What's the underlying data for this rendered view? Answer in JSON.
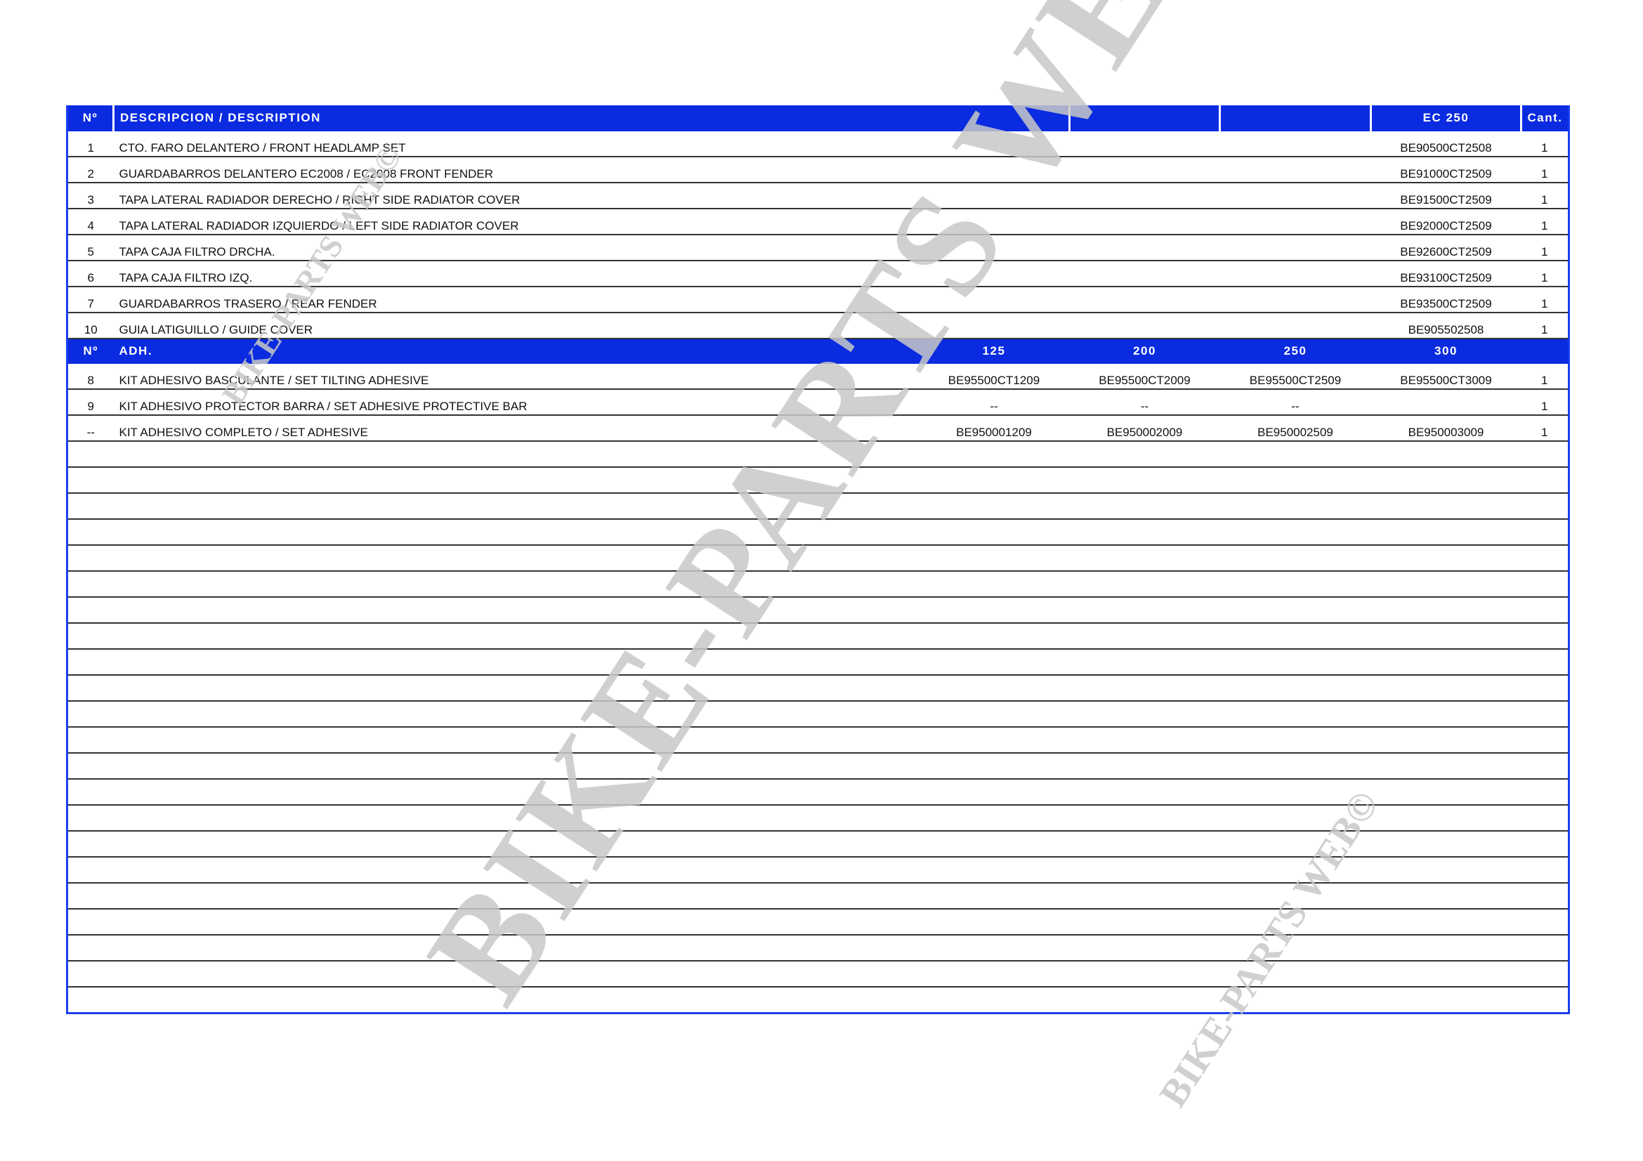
{
  "header": {
    "no": "Nº",
    "description": "DESCRIPCION / DESCRIPTION",
    "model": "EC 250",
    "qty": "Cant."
  },
  "parts": [
    {
      "no": "1",
      "desc": "CTO. FARO DELANTERO / FRONT HEADLAMP SET",
      "ref": "BE90500CT2508",
      "qty": "1"
    },
    {
      "no": "2",
      "desc": "GUARDABARROS DELANTERO EC2008 / EC2008 FRONT FENDER",
      "ref": "BE91000CT2509",
      "qty": "1"
    },
    {
      "no": "3",
      "desc": "TAPA LATERAL RADIADOR DERECHO / RIGHT SIDE RADIATOR COVER",
      "ref": "BE91500CT2509",
      "qty": "1"
    },
    {
      "no": "4",
      "desc": "TAPA LATERAL RADIADOR IZQUIERDO / LEFT SIDE RADIATOR COVER",
      "ref": "BE92000CT2509",
      "qty": "1"
    },
    {
      "no": "5",
      "desc": "TAPA CAJA FILTRO DRCHA.",
      "ref": "BE92600CT2509",
      "qty": "1"
    },
    {
      "no": "6",
      "desc": "TAPA CAJA FILTRO IZQ.",
      "ref": "BE93100CT2509",
      "qty": "1"
    },
    {
      "no": "7",
      "desc": "GUARDABARROS TRASERO / REAR FENDER",
      "ref": "BE93500CT2509",
      "qty": "1"
    },
    {
      "no": "10",
      "desc": "GUIA LATIGUILLO / GUIDE COVER",
      "ref": "BE905502508",
      "qty": "1"
    }
  ],
  "adh_header": {
    "no": "Nº",
    "label": "ADH.",
    "c125": "125",
    "c200": "200",
    "c250": "250",
    "c300": "300"
  },
  "adhesives": [
    {
      "no": "8",
      "desc": "KIT ADHESIVO BASCULANTE / SET TILTING ADHESIVE",
      "r125": "BE95500CT1209",
      "r200": "BE95500CT2009",
      "r250": "BE95500CT2509",
      "r300": "BE95500CT3009",
      "qty": "1"
    },
    {
      "no": "9",
      "desc": "KIT ADHESIVO PROTECTOR BARRA / SET ADHESIVE PROTECTIVE BAR",
      "r125": "--",
      "r200": "--",
      "r250": "--",
      "r300": "",
      "qty": "1"
    },
    {
      "no": "--",
      "desc": "KIT ADHESIVO COMPLETO / SET ADHESIVE",
      "r125": "BE950001209",
      "r200": "BE950002009",
      "r250": "BE950002509",
      "r300": "BE950003009",
      "qty": "1"
    }
  ],
  "watermark": {
    "large": "BIKE-PARTS WEB©",
    "small": "BIKE-PARTS WEB©",
    "color": "#c8c8c8"
  },
  "colors": {
    "header_blue": "#0a2be0",
    "border_blue": "#1a3ef0"
  }
}
